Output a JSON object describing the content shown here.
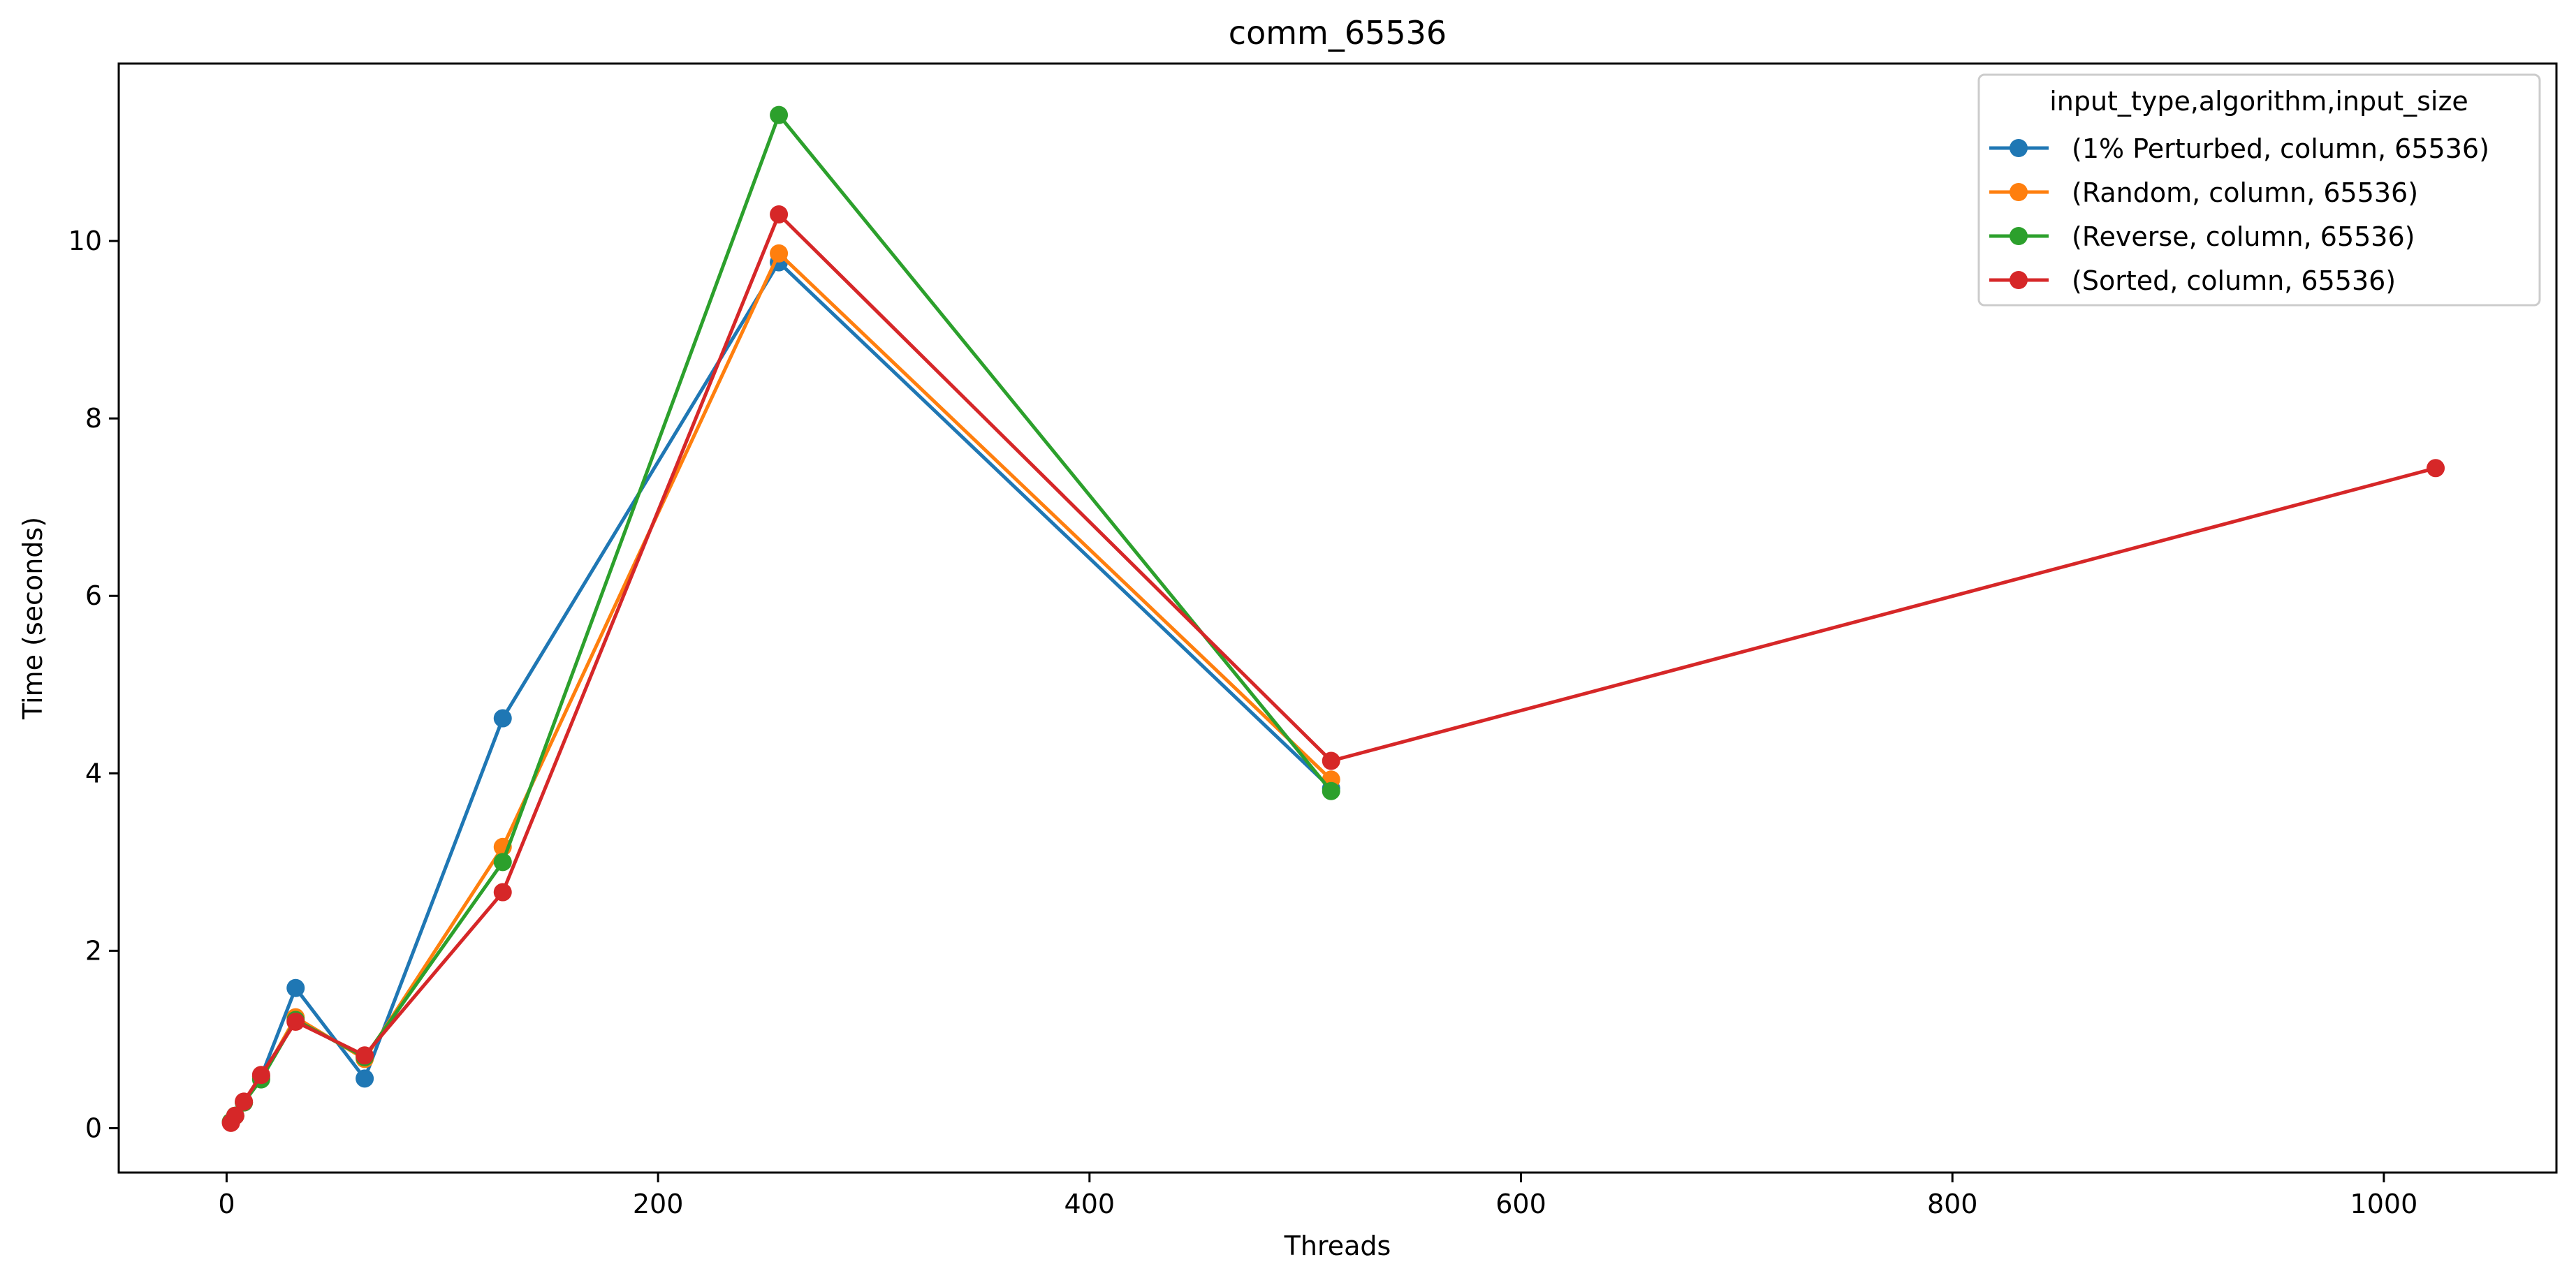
{
  "chart_data": {
    "type": "line",
    "title": "comm_65536",
    "xlabel": "Threads",
    "ylabel": "Time (seconds)",
    "xlim": [
      -50,
      1080
    ],
    "ylim": [
      -0.5,
      12.0
    ],
    "xticks": [
      0,
      200,
      400,
      600,
      800,
      1000
    ],
    "yticks": [
      0,
      2,
      4,
      6,
      8,
      10
    ],
    "grid": false,
    "legend": {
      "title": "input_type,algorithm,input_size",
      "placement": "top-right"
    },
    "series": [
      {
        "name": "(1% Perturbed, column, 65536)",
        "color": "#1f77b4",
        "x": [
          2,
          4,
          8,
          16,
          32,
          64,
          128,
          256,
          512
        ],
        "y": [
          0.07,
          0.14,
          0.29,
          0.58,
          1.58,
          0.56,
          4.62,
          9.76,
          3.83
        ]
      },
      {
        "name": "(Random, column, 65536)",
        "color": "#ff7f0e",
        "x": [
          2,
          4,
          8,
          16,
          32,
          64,
          128,
          256,
          512
        ],
        "y": [
          0.07,
          0.14,
          0.29,
          0.56,
          1.25,
          0.78,
          3.17,
          9.86,
          3.93
        ]
      },
      {
        "name": "(Reverse, column, 65536)",
        "color": "#2ca02c",
        "x": [
          2,
          4,
          8,
          16,
          32,
          64,
          128,
          256,
          512
        ],
        "y": [
          0.07,
          0.14,
          0.29,
          0.55,
          1.22,
          0.8,
          3.0,
          11.42,
          3.8
        ]
      },
      {
        "name": "(Sorted, column, 65536)",
        "color": "#d62728",
        "x": [
          2,
          4,
          8,
          16,
          32,
          64,
          128,
          256,
          512,
          1024
        ],
        "y": [
          0.06,
          0.14,
          0.3,
          0.6,
          1.2,
          0.82,
          2.66,
          10.3,
          4.14,
          7.44
        ]
      }
    ]
  }
}
